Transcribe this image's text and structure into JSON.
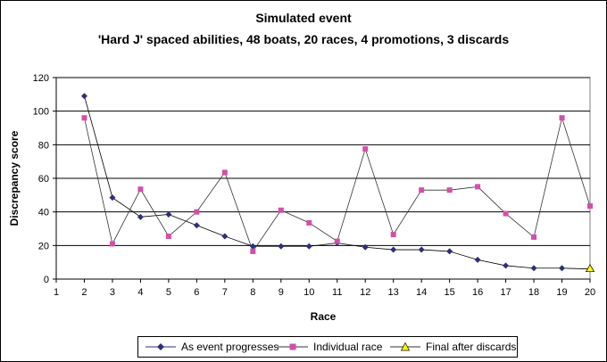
{
  "chart_data": {
    "type": "line",
    "title": "Simulated event",
    "subtitle": "'Hard J' spaced abilities, 48 boats, 20 races, 4 promotions, 3 discards",
    "xlabel": "Race",
    "ylabel": "Discrepancy score",
    "xlim": [
      1,
      20
    ],
    "ylim": [
      0,
      120
    ],
    "xticks": [
      "1",
      "2",
      "3",
      "4",
      "5",
      "6",
      "7",
      "8",
      "9",
      "10",
      "11",
      "12",
      "13",
      "14",
      "15",
      "16",
      "17",
      "18",
      "19",
      "20"
    ],
    "yticks": [
      "0",
      "20",
      "40",
      "60",
      "80",
      "100",
      "120"
    ],
    "grid": "horizontal",
    "legend_position": "bottom",
    "series": [
      {
        "name": "As event progresses",
        "color": "#2e2e7a",
        "marker": "diamond",
        "x": [
          2,
          3,
          4,
          5,
          6,
          7,
          8,
          9,
          10,
          11,
          12,
          13,
          14,
          15,
          16,
          17,
          18,
          19,
          20
        ],
        "values": [
          109,
          48.5,
          37,
          38.5,
          32,
          25.5,
          19.5,
          19.5,
          19.5,
          21.5,
          19,
          17.5,
          17.5,
          16.5,
          11.5,
          8,
          6.5,
          6.5,
          6
        ]
      },
      {
        "name": "Individual race",
        "color": "#d34fa8",
        "marker": "square",
        "x": [
          2,
          3,
          4,
          5,
          6,
          7,
          8,
          9,
          10,
          11,
          12,
          13,
          14,
          15,
          16,
          17,
          18,
          19,
          20
        ],
        "values": [
          96,
          21,
          53.5,
          25.5,
          40,
          63.5,
          16.5,
          41,
          33.5,
          22.5,
          77.5,
          26.5,
          53,
          53,
          55,
          39,
          25,
          96,
          43.5
        ]
      },
      {
        "name": "Final after discards",
        "color": "#ffff00",
        "marker": "triangle",
        "x": [
          20
        ],
        "values": [
          6
        ]
      }
    ]
  }
}
